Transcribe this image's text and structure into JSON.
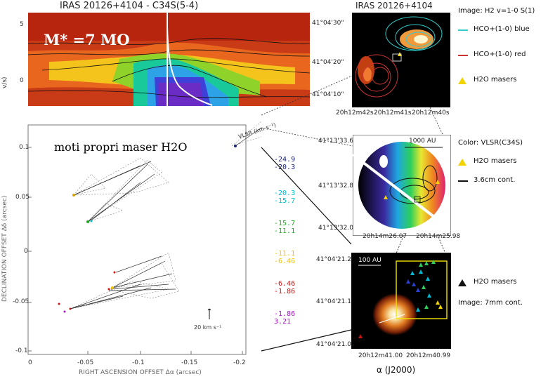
{
  "pv_panel": {
    "title": "IRAS  20126+4104  -  C34S(5-4)",
    "mass_label": "M* =7 MO",
    "y_ticks": [
      "5",
      "0"
    ],
    "y_axis_fragment": "v/s)"
  },
  "maser_plot": {
    "caption": "moti propri maser H2O",
    "y_ticks": [
      "0.1",
      "0.05",
      "0",
      "-0.05",
      "-0.1"
    ],
    "x_ticks": [
      "0",
      "-0.05",
      "-0.1",
      "-0.15",
      "-0.2"
    ],
    "ylabel": "DECLINATION OFFSET Δδ (arcsec)",
    "xlabel": "RIGHT ASCENSION OFFSET Δα (arcsec)",
    "scale_label": "20 km s⁻¹",
    "vlsr_label": "VLSR (km s⁻¹)",
    "velocity_ranges": [
      {
        "lo": "-24.9",
        "hi": "-20.3",
        "color": "#1a237e"
      },
      {
        "lo": "-20.3",
        "hi": "-15.7",
        "color": "#00bcd4"
      },
      {
        "lo": "-15.7",
        "hi": "-11.1",
        "color": "#22aa22"
      },
      {
        "lo": "-11.1",
        "hi": "-6.46",
        "color": "#f2c500"
      },
      {
        "lo": "-6.46",
        "hi": "-1.86",
        "color": "#cc1111"
      },
      {
        "lo": "-1.86",
        "hi": "3.21",
        "color": "#aa11cc"
      }
    ]
  },
  "panel1": {
    "title": "IRAS  20126+4104",
    "dec_ticks": [
      "41°04'30\"",
      "41°04'20\"",
      "41°04'10\""
    ],
    "ra_ticks": [
      "20h12m42s",
      "20h12m41s",
      "20h12m40s"
    ],
    "legend": [
      {
        "text": "Image: H2 v=1-0 S(1)",
        "color": "#000000"
      },
      {
        "text": "HCO+(1-0) blue",
        "color": "#33cccc"
      },
      {
        "text": "HCO+(1-0) red",
        "color": "#cc3333"
      },
      {
        "text": "H2O masers",
        "color": "#f2d400"
      }
    ]
  },
  "panel2": {
    "dec_ticks": [
      "41°13'33.6",
      "41°13'32.8",
      "41°13'32.0"
    ],
    "ra_ticks": [
      "20h14m26.07",
      "20h14m25.98"
    ],
    "scalebar": "1000 AU",
    "legend": [
      {
        "text": "Color: VLSR(C34S)"
      },
      {
        "text": "H2O masers"
      },
      {
        "text": "3.6cm cont."
      }
    ]
  },
  "panel3": {
    "dec_ticks": [
      "41°04'21.2",
      "41°04'21.1",
      "41°04'21.0"
    ],
    "ra_ticks": [
      "20h12m41.00",
      "20h12m40.99"
    ],
    "scalebar": "100 AU",
    "xlabel": "α (J2000)",
    "legend": [
      {
        "text": "H2O masers"
      },
      {
        "text": "Image: 7mm cont."
      }
    ]
  }
}
